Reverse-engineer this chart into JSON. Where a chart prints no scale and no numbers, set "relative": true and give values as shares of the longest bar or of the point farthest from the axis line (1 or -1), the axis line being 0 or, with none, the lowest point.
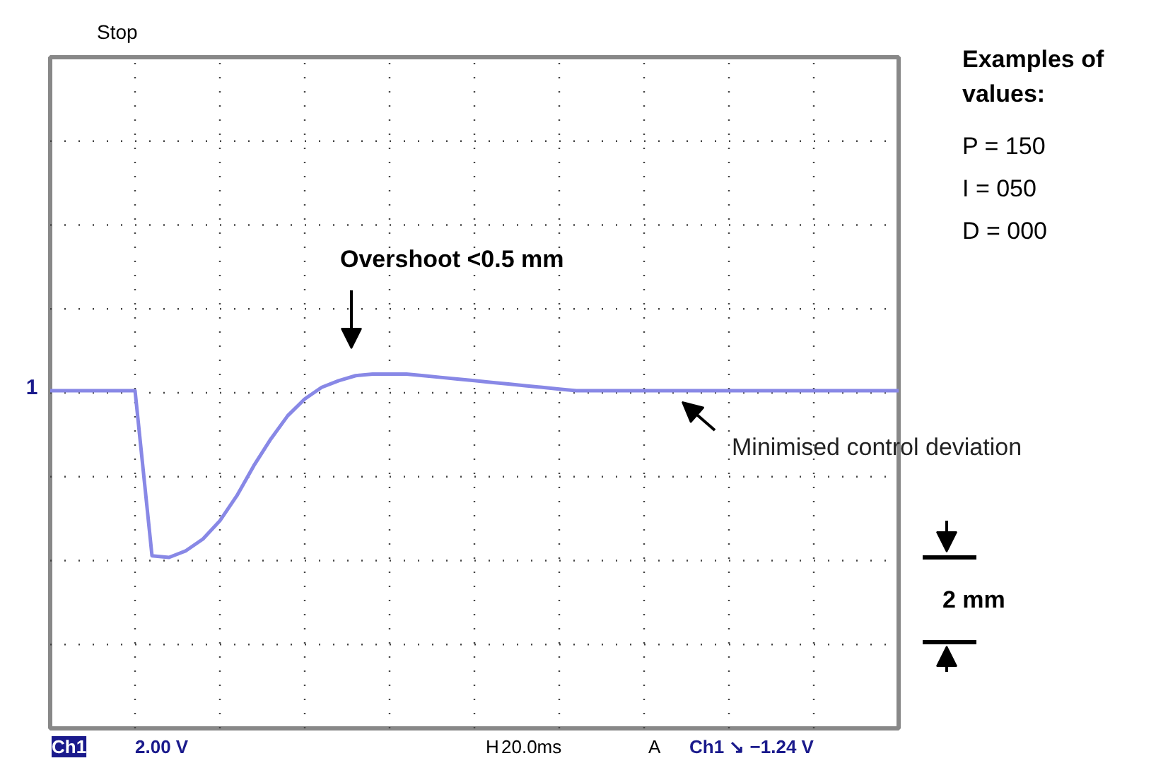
{
  "chart_data": {
    "type": "line",
    "relative": true,
    "grid": true,
    "categories": [
      null,
      null,
      null,
      null,
      null,
      null,
      null,
      null,
      null,
      null,
      null,
      null,
      null,
      null,
      null,
      null,
      null,
      null,
      null,
      null,
      null,
      null,
      null,
      null,
      null,
      null,
      null,
      null,
      null,
      null,
      null,
      null,
      null,
      null,
      null,
      null,
      null,
      null,
      null,
      null,
      null,
      null,
      null,
      null,
      null,
      null,
      null,
      null,
      null,
      null,
      null
    ],
    "series": [
      {
        "color": "#8888e6",
        "values": [
          0,
          0,
          0,
          0,
          0,
          0,
          -0.99,
          -1,
          -0.96,
          -0.89,
          -0.78,
          -0.63,
          -0.45,
          -0.29,
          -0.15,
          -0.05,
          0.02,
          0.06,
          0.09,
          0.1,
          0.1,
          0.1,
          0.09,
          0.08,
          0.07,
          0.06,
          0.05,
          0.04,
          0.03,
          0.02,
          0.01,
          0,
          0,
          0,
          0,
          0,
          0,
          0,
          0,
          0,
          0,
          0,
          0,
          0,
          0,
          0,
          0,
          0,
          0,
          0,
          0
        ]
      }
    ],
    "annotations": [
      "Stop",
      "Overshoot <0.5 mm",
      "Minimised control deviation",
      "2 mm",
      "Examples of\nvalues:",
      "P = 150",
      "I = 050",
      "D = 000",
      "1",
      "Ch1",
      "2.00 V",
      "H",
      "20.0ms",
      "A",
      "Ch1 ↘ −1.24 V"
    ]
  }
}
